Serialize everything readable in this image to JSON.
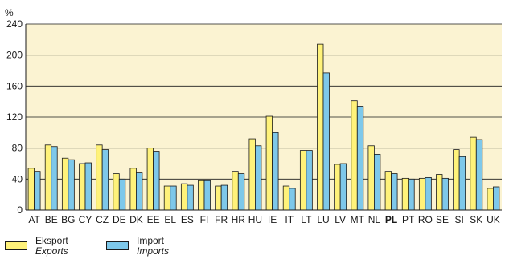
{
  "chart_data": {
    "type": "bar",
    "unit_label": "%",
    "ylim": [
      0,
      240
    ],
    "yticks": [
      0,
      40,
      80,
      120,
      160,
      200,
      240
    ],
    "grid": true,
    "categories": [
      "AT",
      "BE",
      "BG",
      "CY",
      "CZ",
      "DE",
      "DK",
      "EE",
      "EL",
      "ES",
      "FI",
      "FR",
      "HR",
      "HU",
      "IE",
      "IT",
      "LT",
      "LU",
      "LV",
      "MT",
      "NL",
      "PL",
      "PT",
      "RO",
      "SE",
      "SI",
      "SK",
      "UK"
    ],
    "highlighted_category": "PL",
    "series": [
      {
        "name": "Eksport",
        "name_sub": "Exports",
        "color": "#fff27a",
        "values": [
          54,
          84,
          67,
          60,
          84,
          47,
          54,
          80,
          31,
          34,
          38,
          31,
          50,
          92,
          121,
          31,
          77,
          214,
          59,
          141,
          83,
          50,
          41,
          41,
          46,
          78,
          94,
          28
        ]
      },
      {
        "name": "Import",
        "name_sub": "Imports",
        "color": "#7ec8ea",
        "values": [
          50,
          82,
          65,
          61,
          78,
          40,
          48,
          76,
          31,
          32,
          38,
          32,
          47,
          83,
          100,
          28,
          77,
          177,
          60,
          134,
          72,
          47,
          40,
          42,
          41,
          69,
          91,
          30
        ]
      }
    ]
  },
  "colors": {
    "panel_background": "#fbf3d2",
    "grid": "#1a1a1a",
    "bar_outline": "#1a1a1a"
  }
}
